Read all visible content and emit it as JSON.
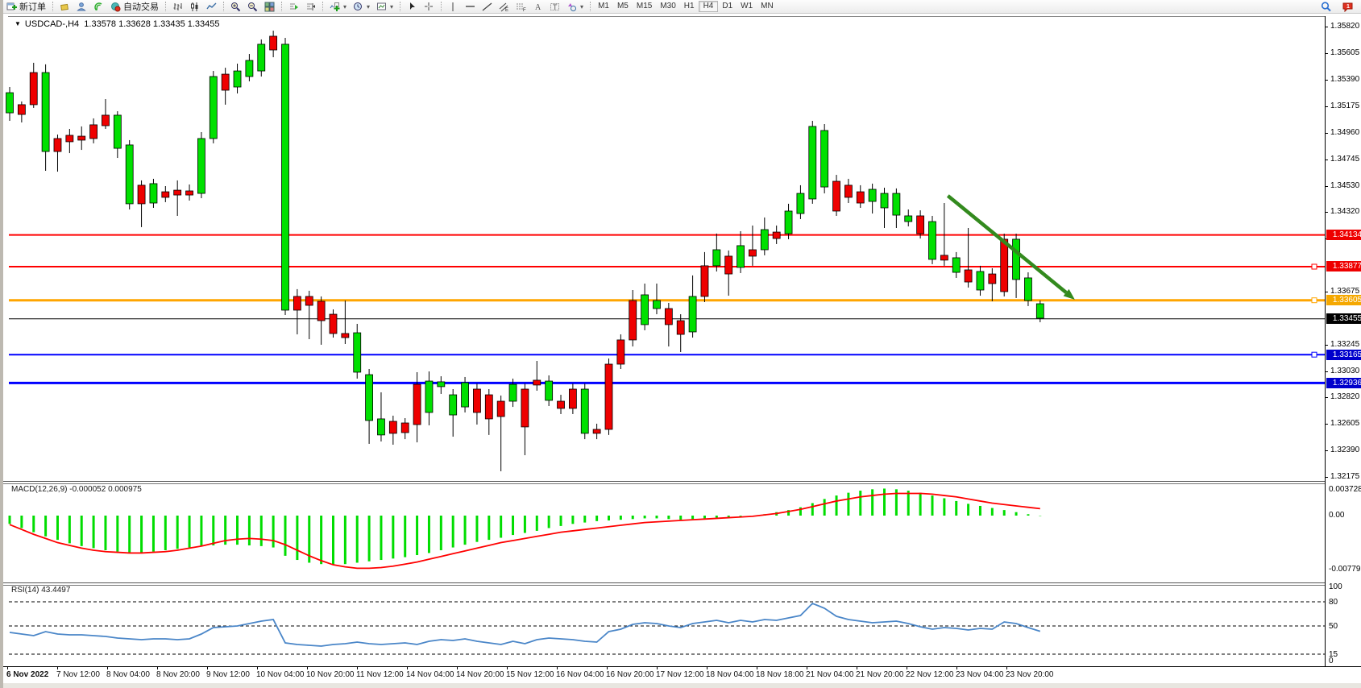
{
  "accent_colors": {
    "bull": "#00e000",
    "bear": "#ee0000",
    "outline": "#000000",
    "macd_hist": "#00dd00",
    "macd_signal": "#ff0000",
    "rsi_line": "#4a86c8",
    "arrow": "#338a1e"
  },
  "toolbar": {
    "groups": [
      {
        "items": [
          {
            "name": "new-order-button",
            "label": "新订单",
            "icon": "new-order-icon"
          }
        ]
      },
      {
        "items": [
          {
            "name": "styles-button",
            "icon": "cube-icon"
          },
          {
            "name": "market-watch-button",
            "icon": "profile-icon"
          },
          {
            "name": "signals-button",
            "icon": "signal-icon"
          },
          {
            "name": "autotrading-button",
            "label": "自动交易",
            "icon": "autotrading-icon"
          }
        ]
      },
      {
        "items": [
          {
            "name": "bar-chart-button",
            "icon": "bar-chart-icon"
          },
          {
            "name": "candlestick-button",
            "icon": "candlestick-icon"
          },
          {
            "name": "line-chart-button",
            "icon": "line-chart-icon"
          }
        ]
      },
      {
        "items": [
          {
            "name": "zoom-in-button",
            "icon": "zoom-in-icon"
          },
          {
            "name": "zoom-out-button",
            "icon": "zoom-out-icon"
          },
          {
            "name": "tile-windows-button",
            "icon": "tile-windows-icon"
          }
        ]
      },
      {
        "items": [
          {
            "name": "auto-scroll-button",
            "icon": "auto-scroll-icon"
          },
          {
            "name": "chart-shift-button",
            "icon": "chart-shift-icon"
          }
        ]
      },
      {
        "items": [
          {
            "name": "indicators-button",
            "icon": "indicators-icon",
            "caret": true
          },
          {
            "name": "periods-button",
            "icon": "periods-icon",
            "caret": true
          },
          {
            "name": "templates-button",
            "icon": "templates-icon",
            "caret": true
          }
        ]
      },
      {
        "items": [
          {
            "name": "cursor-button",
            "icon": "cursor-icon"
          },
          {
            "name": "crosshair-button",
            "icon": "crosshair-icon"
          }
        ]
      },
      {
        "items": [
          {
            "name": "vertical-line-button",
            "icon": "vertical-line-icon"
          },
          {
            "name": "horizontal-line-button",
            "icon": "horizontal-line-icon"
          },
          {
            "name": "trendline-button",
            "icon": "trendline-icon"
          },
          {
            "name": "equidistant-channel-button",
            "icon": "equidistant-channel-icon"
          },
          {
            "name": "fibonacci-button",
            "icon": "fibonacci-icon"
          },
          {
            "name": "text-button",
            "icon": "text-icon"
          },
          {
            "name": "text-label-button",
            "icon": "text-label-icon"
          },
          {
            "name": "shapes-button",
            "icon": "shapes-icon",
            "caret": true
          }
        ]
      }
    ],
    "timeframes": [
      "M1",
      "M5",
      "M15",
      "M30",
      "H1",
      "H4",
      "D1",
      "W1",
      "MN"
    ],
    "active_timeframe": "H4",
    "right_icons": [
      {
        "name": "search-icon"
      },
      {
        "name": "notifications-icon",
        "badge": "1"
      }
    ]
  },
  "chart_title": {
    "symbol_period": "USDCAD-,H4",
    "quote": "1.33578 1.33628 1.33435 1.33455"
  },
  "chart_data": {
    "type": "candlestick",
    "symbol": "USDCAD-,H4",
    "ohlc_quote": {
      "open": 1.33578,
      "high": 1.33628,
      "low": 1.33435,
      "close": 1.33455
    },
    "price_axis_ticks": [
      1.3582,
      1.35605,
      1.3539,
      1.35175,
      1.3496,
      1.34745,
      1.3453,
      1.3432,
      1.34105,
      1.33675,
      1.33245,
      1.3303,
      1.3282,
      1.32605,
      1.3239,
      1.32175
    ],
    "price_badges": [
      {
        "price": 1.34134,
        "label": "1.34134",
        "color": "#ee0000"
      },
      {
        "price": 1.33877,
        "label": "1.33877",
        "color": "#ee0000"
      },
      {
        "price": 1.33605,
        "label": "1.33605",
        "color": "#f5a800"
      },
      {
        "price": 1.33455,
        "label": "1.33455",
        "color": "#000000"
      },
      {
        "price": 1.33165,
        "label": "1.33165",
        "color": "#0000cc"
      },
      {
        "price": 1.32936,
        "label": "1.32936",
        "color": "#0000cc"
      }
    ],
    "hlines": [
      {
        "price": 1.34134,
        "color": "#ff0000",
        "width": 2,
        "marker": false
      },
      {
        "price": 1.33877,
        "color": "#ff0000",
        "width": 2,
        "marker": true
      },
      {
        "price": 1.33605,
        "color": "#ffa500",
        "width": 3,
        "marker": true
      },
      {
        "price": 1.33455,
        "color": "#000000",
        "width": 1,
        "marker": false
      },
      {
        "price": 1.33165,
        "color": "#0000ff",
        "width": 2,
        "marker": true
      },
      {
        "price": 1.32936,
        "color": "#0000ff",
        "width": 3,
        "marker": false
      }
    ],
    "trend_arrow": {
      "from": {
        "bar": 78.3,
        "price": 1.34451
      },
      "to": {
        "bar": 88.9,
        "price": 1.3361
      }
    },
    "candles": [
      [
        1.35122,
        1.35331,
        1.35057,
        1.35285
      ],
      [
        1.35188,
        1.35214,
        1.35044,
        1.35109
      ],
      [
        1.35448,
        1.35527,
        1.35162,
        1.35188
      ],
      [
        1.34809,
        1.35514,
        1.34653,
        1.35448
      ],
      [
        1.34914,
        1.34946,
        1.34646,
        1.34809
      ],
      [
        1.3494,
        1.34992,
        1.34796,
        1.34888
      ],
      [
        1.34933,
        1.35012,
        1.34822,
        1.34901
      ],
      [
        1.35025,
        1.35077,
        1.34875,
        1.34914
      ],
      [
        1.35103,
        1.35233,
        1.34992,
        1.35018
      ],
      [
        1.34835,
        1.35135,
        1.34757,
        1.35103
      ],
      [
        1.34386,
        1.34901,
        1.3434,
        1.34862
      ],
      [
        1.34536,
        1.34575,
        1.34197,
        1.34386
      ],
      [
        1.34392,
        1.34588,
        1.34353,
        1.34549
      ],
      [
        1.34483,
        1.34529,
        1.34399,
        1.34438
      ],
      [
        1.34496,
        1.34575,
        1.34288,
        1.34457
      ],
      [
        1.3449,
        1.34542,
        1.34412,
        1.34457
      ],
      [
        1.3447,
        1.34966,
        1.34431,
        1.34914
      ],
      [
        1.34914,
        1.35461,
        1.34875,
        1.35416
      ],
      [
        1.35435,
        1.35487,
        1.35188,
        1.35305
      ],
      [
        1.35331,
        1.3552,
        1.35279,
        1.35461
      ],
      [
        1.35416,
        1.35598,
        1.35377,
        1.35546
      ],
      [
        1.35461,
        1.35716,
        1.35416,
        1.35677
      ],
      [
        1.35742,
        1.35787,
        1.35572,
        1.35631
      ],
      [
        1.33525,
        1.35729,
        1.33486,
        1.35677
      ],
      [
        1.33636,
        1.33695,
        1.33329,
        1.33525
      ],
      [
        1.33636,
        1.33682,
        1.3329,
        1.33564
      ],
      [
        1.33597,
        1.33636,
        1.33245,
        1.3344
      ],
      [
        1.33492,
        1.33531,
        1.33303,
        1.33336
      ],
      [
        1.33336,
        1.33603,
        1.33251,
        1.33303
      ],
      [
        1.33023,
        1.33414,
        1.32971,
        1.33342
      ],
      [
        1.32632,
        1.33049,
        1.32443,
        1.33003
      ],
      [
        1.32515,
        1.3286,
        1.32462,
        1.32645
      ],
      [
        1.32625,
        1.32671,
        1.32436,
        1.32528
      ],
      [
        1.32612,
        1.32651,
        1.32481,
        1.32534
      ],
      [
        1.32925,
        1.33023,
        1.32455,
        1.32599
      ],
      [
        1.32697,
        1.33029,
        1.32593,
        1.32951
      ],
      [
        1.32906,
        1.3299,
        1.32847,
        1.32945
      ],
      [
        1.32677,
        1.32886,
        1.32501,
        1.3284
      ],
      [
        1.32742,
        1.32984,
        1.32697,
        1.32938
      ],
      [
        1.32886,
        1.32931,
        1.32599,
        1.32697
      ],
      [
        1.3284,
        1.32886,
        1.32515,
        1.32645
      ],
      [
        1.32788,
        1.32834,
        1.32221,
        1.32664
      ],
      [
        1.32788,
        1.32971,
        1.32742,
        1.32925
      ],
      [
        1.32886,
        1.32931,
        1.32351,
        1.3258
      ],
      [
        1.32958,
        1.33114,
        1.32873,
        1.32919
      ],
      [
        1.32795,
        1.32997,
        1.32749,
        1.32951
      ],
      [
        1.32788,
        1.3284,
        1.32684,
        1.3273
      ],
      [
        1.32886,
        1.32931,
        1.32684,
        1.3273
      ],
      [
        1.32528,
        1.32931,
        1.32481,
        1.32886
      ],
      [
        1.3256,
        1.32606,
        1.32481,
        1.32528
      ],
      [
        1.33088,
        1.33134,
        1.32515,
        1.3256
      ],
      [
        1.33284,
        1.33329,
        1.33049,
        1.33088
      ],
      [
        1.33603,
        1.33688,
        1.33231,
        1.33284
      ],
      [
        1.33408,
        1.3374,
        1.33362,
        1.33649
      ],
      [
        1.33538,
        1.3374,
        1.33492,
        1.33603
      ],
      [
        1.33538,
        1.33584,
        1.33231,
        1.33408
      ],
      [
        1.3344,
        1.33492,
        1.33186,
        1.33329
      ],
      [
        1.33349,
        1.33806,
        1.33303,
        1.33636
      ],
      [
        1.33884,
        1.33995,
        1.3359,
        1.33636
      ],
      [
        1.33884,
        1.34145,
        1.33838,
        1.34014
      ],
      [
        1.33962,
        1.34008,
        1.33642,
        1.33818
      ],
      [
        1.33871,
        1.34164,
        1.33825,
        1.34047
      ],
      [
        1.34014,
        1.3421,
        1.33884,
        1.33962
      ],
      [
        1.34014,
        1.34275,
        1.33969,
        1.34177
      ],
      [
        1.34157,
        1.3421,
        1.3406,
        1.34105
      ],
      [
        1.34144,
        1.34386,
        1.34099,
        1.34327
      ],
      [
        1.34307,
        1.34536,
        1.34262,
        1.3447
      ],
      [
        1.34425,
        1.35057,
        1.34386,
        1.35012
      ],
      [
        1.34522,
        1.35031,
        1.3447,
        1.34979
      ],
      [
        1.34568,
        1.3462,
        1.34288,
        1.34327
      ],
      [
        1.34536,
        1.34588,
        1.34392,
        1.34438
      ],
      [
        1.34483,
        1.34536,
        1.34353,
        1.34392
      ],
      [
        1.34405,
        1.34549,
        1.34307,
        1.34503
      ],
      [
        1.34353,
        1.34516,
        1.3419,
        1.3447
      ],
      [
        1.34294,
        1.3451,
        1.3419,
        1.3447
      ],
      [
        1.34242,
        1.3434,
        1.34203,
        1.34288
      ],
      [
        1.34288,
        1.34333,
        1.34105,
        1.34144
      ],
      [
        1.33936,
        1.34288,
        1.33897,
        1.34242
      ],
      [
        1.33969,
        1.34392,
        1.33884,
        1.3393
      ],
      [
        1.33831,
        1.33995,
        1.33786,
        1.33949
      ],
      [
        1.33851,
        1.3419,
        1.33708,
        1.33753
      ],
      [
        1.33688,
        1.33884,
        1.33642,
        1.33838
      ],
      [
        1.33818,
        1.33864,
        1.33597,
        1.3374
      ],
      [
        1.34099,
        1.34144,
        1.33636,
        1.33675
      ],
      [
        1.33773,
        1.34144,
        1.33623,
        1.34099
      ],
      [
        1.33603,
        1.33831,
        1.33558,
        1.33786
      ],
      [
        1.3346,
        1.33603,
        1.33427,
        1.33577
      ]
    ],
    "macd": {
      "label": "MACD(12,26,9) -0.000052 0.000975",
      "axis_labels": [
        {
          "value": 0.003728,
          "text": "0.003728"
        },
        {
          "value": 0.0,
          "text": "0.00"
        },
        {
          "value": -0.007792,
          "text": "-0.007792"
        }
      ],
      "histogram": [
        -0.0012,
        -0.0018,
        -0.0024,
        -0.003,
        -0.0035,
        -0.004,
        -0.0044,
        -0.0047,
        -0.005,
        -0.0052,
        -0.0053,
        -0.0053,
        -0.0052,
        -0.005,
        -0.0048,
        -0.0046,
        -0.0044,
        -0.0043,
        -0.0042,
        -0.0042,
        -0.0043,
        -0.0044,
        -0.0046,
        -0.0058,
        -0.0064,
        -0.0068,
        -0.007,
        -0.0071,
        -0.007,
        -0.0068,
        -0.0066,
        -0.0064,
        -0.0062,
        -0.006,
        -0.0057,
        -0.0054,
        -0.005,
        -0.0046,
        -0.0042,
        -0.0038,
        -0.0035,
        -0.0032,
        -0.0028,
        -0.0025,
        -0.0022,
        -0.0018,
        -0.0015,
        -0.0012,
        -0.001,
        -0.0008,
        -0.0007,
        -0.0006,
        -0.0005,
        -0.0004,
        -0.0004,
        -0.0005,
        -0.0006,
        -0.0005,
        -0.0004,
        -0.0003,
        -0.0002,
        -0.0001,
        0.0,
        0.0002,
        0.0005,
        0.0008,
        0.0012,
        0.0018,
        0.0024,
        0.0029,
        0.0033,
        0.0036,
        0.0038,
        0.0039,
        0.0038,
        0.0036,
        0.0033,
        0.0029,
        0.0025,
        0.0021,
        0.0017,
        0.0014,
        0.0011,
        0.0008,
        0.0005,
        0.0002,
        -5e-05
      ],
      "signal": [
        -0.0013,
        -0.002,
        -0.0027,
        -0.0033,
        -0.0039,
        -0.0043,
        -0.0047,
        -0.005,
        -0.0052,
        -0.0053,
        -0.0054,
        -0.0054,
        -0.0053,
        -0.0052,
        -0.005,
        -0.0047,
        -0.0044,
        -0.004,
        -0.0036,
        -0.0034,
        -0.0033,
        -0.0034,
        -0.0036,
        -0.0042,
        -0.005,
        -0.0058,
        -0.0065,
        -0.0071,
        -0.0074,
        -0.0076,
        -0.0076,
        -0.0075,
        -0.0073,
        -0.007,
        -0.0067,
        -0.0063,
        -0.0059,
        -0.0055,
        -0.0051,
        -0.0047,
        -0.0043,
        -0.0039,
        -0.0036,
        -0.0033,
        -0.003,
        -0.0027,
        -0.0024,
        -0.0022,
        -0.002,
        -0.0018,
        -0.0016,
        -0.0014,
        -0.0012,
        -0.001,
        -0.0009,
        -0.0008,
        -0.0007,
        -0.0006,
        -0.0005,
        -0.0004,
        -0.0003,
        -0.0002,
        -0.0001,
        0.0001,
        0.0003,
        0.0006,
        0.0009,
        0.0013,
        0.0017,
        0.0021,
        0.0024,
        0.0027,
        0.0029,
        0.0031,
        0.0032,
        0.0032,
        0.0032,
        0.0031,
        0.0029,
        0.0027,
        0.0024,
        0.0021,
        0.0018,
        0.0016,
        0.0014,
        0.0012,
        0.001
      ]
    },
    "rsi": {
      "label": "RSI(14) 43.4497",
      "axis_labels": [
        {
          "value": 100,
          "text": "100"
        },
        {
          "value": 80,
          "text": "80"
        },
        {
          "value": 50,
          "text": "50"
        },
        {
          "value": 15,
          "text": "15"
        },
        {
          "value": 0,
          "text": "0"
        }
      ],
      "dashed_levels": [
        80,
        50,
        15
      ],
      "values": [
        42,
        40,
        38,
        43,
        40,
        39,
        39,
        38,
        37,
        35,
        34,
        33,
        34,
        34,
        33,
        34,
        40,
        48,
        49,
        50,
        53,
        56,
        58,
        29,
        27,
        26,
        25,
        27,
        28,
        30,
        28,
        27,
        28,
        29,
        27,
        31,
        33,
        32,
        34,
        31,
        29,
        27,
        31,
        28,
        33,
        35,
        34,
        33,
        31,
        30,
        43,
        46,
        52,
        54,
        53,
        50,
        48,
        53,
        55,
        57,
        54,
        57,
        55,
        58,
        57,
        60,
        63,
        78,
        72,
        62,
        58,
        56,
        54,
        55,
        56,
        53,
        49,
        46,
        48,
        47,
        45,
        47,
        46,
        55,
        53,
        48,
        43.4
      ]
    },
    "time_labels": [
      "6 Nov 2022",
      "7 Nov 12:00",
      "8 Nov 04:00",
      "8 Nov 20:00",
      "9 Nov 12:00",
      "10 Nov 04:00",
      "10 Nov 20:00",
      "11 Nov 12:00",
      "14 Nov 04:00",
      "14 Nov 20:00",
      "15 Nov 12:00",
      "16 Nov 04:00",
      "16 Nov 20:00",
      "17 Nov 12:00",
      "18 Nov 04:00",
      "18 Nov 18:00",
      "21 Nov 04:00",
      "21 Nov 20:00",
      "22 Nov 12:00",
      "23 Nov 04:00",
      "23 Nov 20:00"
    ]
  }
}
